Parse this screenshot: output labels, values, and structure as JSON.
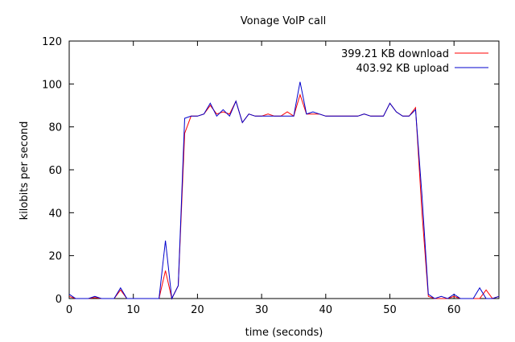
{
  "chart_data": {
    "type": "line",
    "title": "Vonage VoIP call",
    "xlabel": "time (seconds)",
    "ylabel": "kilobits per second",
    "xlim": [
      0,
      67
    ],
    "ylim": [
      0,
      120
    ],
    "x_ticks": [
      0,
      10,
      20,
      30,
      40,
      50,
      60
    ],
    "y_ticks": [
      0,
      20,
      40,
      60,
      80,
      100,
      120
    ],
    "grid": false,
    "legend_position": "top-right",
    "series": [
      {
        "name": "399.21 KB download",
        "color": "#ff0000",
        "x": [
          0,
          1,
          2,
          3,
          4,
          5,
          6,
          7,
          8,
          9,
          10,
          11,
          12,
          13,
          14,
          15,
          16,
          17,
          18,
          19,
          20,
          21,
          22,
          23,
          24,
          25,
          26,
          27,
          28,
          29,
          30,
          31,
          32,
          33,
          34,
          35,
          36,
          37,
          38,
          39,
          40,
          41,
          42,
          43,
          44,
          45,
          46,
          47,
          48,
          49,
          50,
          51,
          52,
          53,
          54,
          55,
          56,
          57,
          58,
          59,
          60,
          61,
          62,
          63,
          64,
          65,
          66,
          67
        ],
        "values": [
          1,
          0,
          0,
          0,
          0.5,
          0,
          0,
          0,
          4,
          0,
          0,
          0,
          0,
          0,
          0,
          13,
          0,
          6,
          77,
          85,
          85,
          86,
          90,
          86,
          87,
          86,
          92,
          82,
          86,
          85,
          85,
          86,
          85,
          85,
          87,
          85,
          95,
          86,
          86,
          86,
          85,
          85,
          85,
          85,
          85,
          85,
          86,
          85,
          85,
          85,
          91,
          87,
          85,
          85,
          89,
          40,
          1,
          0,
          0,
          0,
          1,
          0,
          0,
          0,
          0,
          4,
          0,
          1
        ]
      },
      {
        "name": "403.92 KB upload",
        "color": "#0000cc",
        "x": [
          0,
          1,
          2,
          3,
          4,
          5,
          6,
          7,
          8,
          9,
          10,
          11,
          12,
          13,
          14,
          15,
          16,
          17,
          18,
          19,
          20,
          21,
          22,
          23,
          24,
          25,
          26,
          27,
          28,
          29,
          30,
          31,
          32,
          33,
          34,
          35,
          36,
          37,
          38,
          39,
          40,
          41,
          42,
          43,
          44,
          45,
          46,
          47,
          48,
          49,
          50,
          51,
          52,
          53,
          54,
          55,
          56,
          57,
          58,
          59,
          60,
          61,
          62,
          63,
          64,
          65,
          66,
          67
        ],
        "values": [
          2,
          0,
          0,
          0,
          1,
          0,
          0,
          0,
          5,
          0,
          0,
          0,
          0,
          0,
          0,
          27,
          0,
          6,
          84,
          85,
          85,
          86,
          91,
          85,
          88,
          85,
          92,
          82,
          86,
          85,
          85,
          85,
          85,
          85,
          85,
          85,
          101,
          86,
          87,
          86,
          85,
          85,
          85,
          85,
          85,
          85,
          86,
          85,
          85,
          85,
          91,
          87,
          85,
          85,
          88,
          48,
          2,
          0,
          1,
          0,
          2,
          0,
          0,
          0,
          5,
          0,
          0,
          1
        ]
      }
    ]
  }
}
